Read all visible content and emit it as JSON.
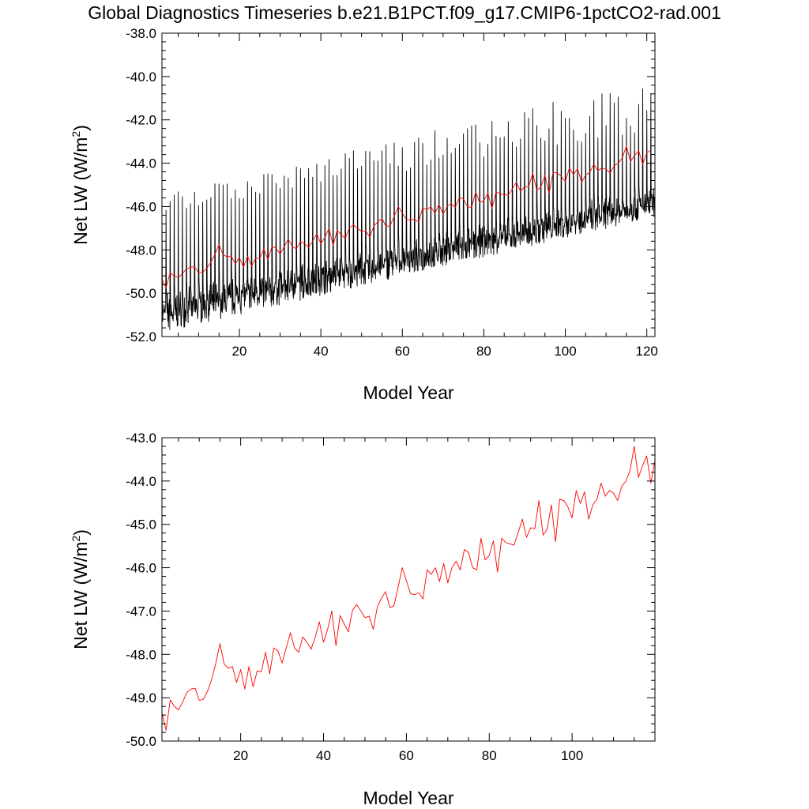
{
  "title": "Global Diagnostics Timeseries b.e21.B1PCT.f09_g17.CMIP6-1pctCO2-rad.001",
  "chart_data": [
    {
      "type": "line",
      "xlabel": "Model Year",
      "ylabel": "Net LW (W/m",
      "ylabel_sup": "2",
      "ylabel_close": ")",
      "xlim": [
        1,
        122
      ],
      "ylim": [
        -52.0,
        -38.0
      ],
      "xticks": [
        20,
        40,
        60,
        80,
        100,
        120
      ],
      "yticks": [
        -52.0,
        -50.0,
        -48.0,
        -46.0,
        -44.0,
        -42.0,
        -40.0,
        -38.0
      ],
      "series": [
        {
          "color": "#000000",
          "kind": "monthly",
          "months_per_year": 12,
          "years": 121,
          "start_year": 1,
          "peak_range_start": [
            -46.3,
            -45.5
          ],
          "peak_range_end": [
            -42.5,
            -40.0
          ],
          "trough_range_start": [
            -51.8,
            -50.5
          ],
          "trough_range_end": [
            -46.5,
            -45.6
          ]
        },
        {
          "color": "#ff0000",
          "kind": "annual",
          "ref": "annual_means"
        }
      ]
    },
    {
      "type": "line",
      "xlabel": "Model Year",
      "ylabel": "Net LW (W/m",
      "ylabel_sup": "2",
      "ylabel_close": ")",
      "xlim": [
        1,
        120
      ],
      "ylim": [
        -50.0,
        -43.0
      ],
      "xticks": [
        20,
        40,
        60,
        80,
        100
      ],
      "yticks": [
        -50.0,
        -49.0,
        -48.0,
        -47.0,
        -46.0,
        -45.0,
        -44.0,
        -43.0
      ],
      "series": [
        {
          "color": "#ff0000",
          "kind": "annual",
          "ref": "annual_means"
        }
      ]
    }
  ],
  "annual_means": {
    "x_start": 1,
    "values": [
      -49.35,
      -49.75,
      -49.05,
      -49.2,
      -49.28,
      -49.1,
      -48.88,
      -48.8,
      -48.78,
      -49.06,
      -49.04,
      -48.85,
      -48.58,
      -48.2,
      -47.75,
      -48.22,
      -48.32,
      -48.28,
      -48.65,
      -48.35,
      -48.8,
      -48.28,
      -48.75,
      -48.38,
      -48.4,
      -47.95,
      -48.45,
      -47.85,
      -47.92,
      -48.2,
      -47.85,
      -47.5,
      -47.85,
      -47.95,
      -47.6,
      -47.72,
      -47.88,
      -47.6,
      -47.25,
      -47.72,
      -47.42,
      -47.0,
      -47.8,
      -47.1,
      -47.3,
      -47.48,
      -46.98,
      -46.85,
      -47.0,
      -47.15,
      -47.12,
      -47.42,
      -46.9,
      -46.7,
      -46.55,
      -46.92,
      -46.88,
      -46.45,
      -46.0,
      -46.3,
      -46.6,
      -46.62,
      -46.58,
      -46.72,
      -46.05,
      -46.15,
      -46.0,
      -46.32,
      -45.9,
      -46.35,
      -46.0,
      -45.85,
      -46.05,
      -45.58,
      -45.65,
      -46.0,
      -46.05,
      -45.32,
      -45.82,
      -45.72,
      -45.38,
      -46.1,
      -45.32,
      -45.42,
      -45.45,
      -45.48,
      -45.18,
      -44.88,
      -45.3,
      -45.08,
      -45.1,
      -44.45,
      -45.25,
      -45.1,
      -44.55,
      -45.4,
      -44.42,
      -44.45,
      -44.6,
      -44.85,
      -44.22,
      -44.52,
      -44.25,
      -44.88,
      -44.55,
      -44.42,
      -44.05,
      -44.35,
      -44.22,
      -44.28,
      -44.45,
      -44.12,
      -44.0,
      -43.75,
      -43.2,
      -43.92,
      -43.65,
      -43.42,
      -44.05,
      -43.52,
      -43.4
    ]
  }
}
